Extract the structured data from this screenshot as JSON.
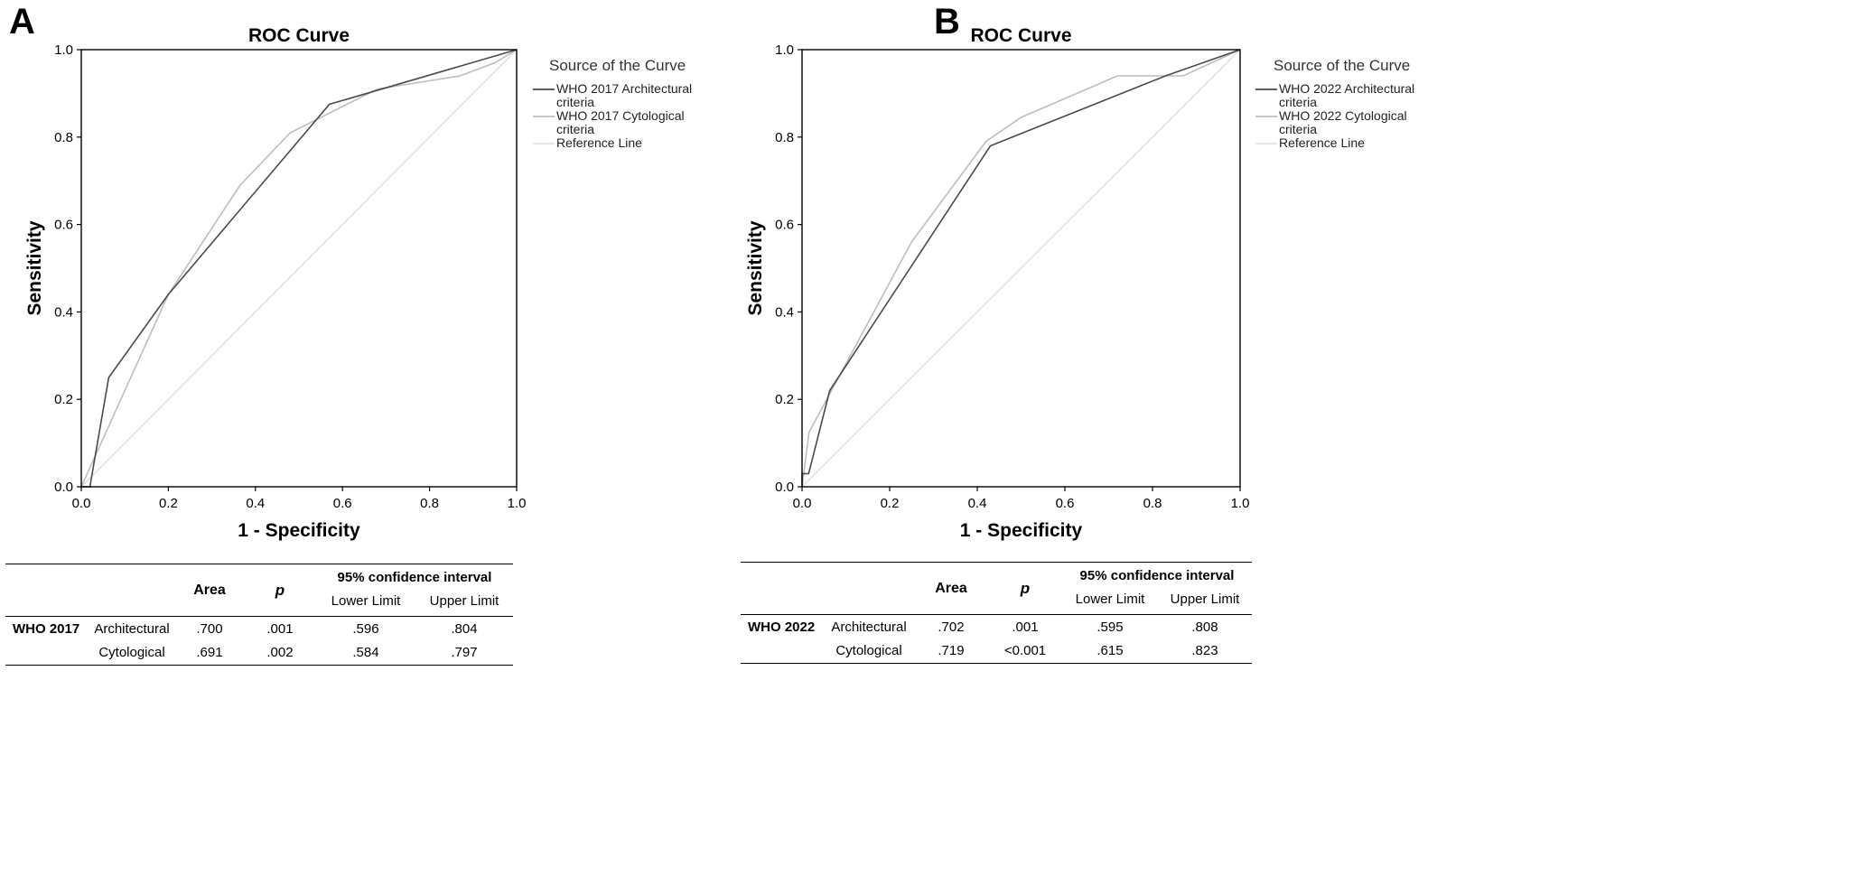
{
  "chart_data": [
    {
      "type": "line",
      "panel_label": "A",
      "title": "ROC Curve",
      "xlabel": "1 - Specificity",
      "ylabel": "Sensitivity",
      "xlim": [
        0,
        1
      ],
      "ylim": [
        0,
        1
      ],
      "xticks": [
        "0.0",
        "0.2",
        "0.4",
        "0.6",
        "0.8",
        "1.0"
      ],
      "yticks": [
        "0.0",
        "0.2",
        "0.4",
        "0.6",
        "0.8",
        "1.0"
      ],
      "legend_title": "Source of the Curve",
      "legend_position": "right",
      "series": [
        {
          "name": "WHO 2017 Architectural criteria",
          "legend_lines": [
            "WHO 2017 Architectural",
            "criteria"
          ],
          "color": "#4a4a4a",
          "x": [
            0,
            0.02,
            0.03,
            0.063,
            0.2,
            0.57,
            1.0
          ],
          "y": [
            0,
            0,
            0.06,
            0.25,
            0.44,
            0.875,
            1.0
          ]
        },
        {
          "name": "WHO 2017 Cytological criteria",
          "legend_lines": [
            "WHO 2017 Cytological",
            "criteria"
          ],
          "color": "#bdbdbd",
          "x": [
            0,
            0.2,
            0.365,
            0.48,
            0.68,
            0.87,
            0.95,
            1.0
          ],
          "y": [
            0,
            0.44,
            0.69,
            0.81,
            0.91,
            0.94,
            0.97,
            1.0
          ]
        },
        {
          "name": "Reference Line",
          "legend_lines": [
            "Reference Line"
          ],
          "color": "#e2e2e2",
          "x": [
            0,
            1
          ],
          "y": [
            0,
            1
          ]
        }
      ],
      "table": {
        "group": "WHO 2017",
        "headers": {
          "area": "Area",
          "p": "p",
          "ci": "95% confidence interval",
          "lower": "Lower Limit",
          "upper": "Upper Limit"
        },
        "rows": [
          {
            "label": "Architectural",
            "area": ".700",
            "p": ".001",
            "lower": ".596",
            "upper": ".804"
          },
          {
            "label": "Cytological",
            "area": ".691",
            "p": ".002",
            "lower": ".584",
            "upper": ".797"
          }
        ]
      }
    },
    {
      "type": "line",
      "panel_label": "B",
      "title": "ROC Curve",
      "xlabel": "1 - Specificity",
      "ylabel": "Sensitivity",
      "xlim": [
        0,
        1
      ],
      "ylim": [
        0,
        1
      ],
      "xticks": [
        "0.0",
        "0.2",
        "0.4",
        "0.6",
        "0.8",
        "1.0"
      ],
      "yticks": [
        "0.0",
        "0.2",
        "0.4",
        "0.6",
        "0.8",
        "1.0"
      ],
      "legend_title": "Source of the Curve",
      "legend_position": "right",
      "series": [
        {
          "name": "WHO 2022 Architectural criteria",
          "legend_lines": [
            "WHO 2022 Architectural",
            "criteria"
          ],
          "color": "#4a4a4a",
          "x": [
            0,
            0,
            0.015,
            0.063,
            0.43,
            0.83,
            1.0
          ],
          "y": [
            0,
            0.03,
            0.03,
            0.22,
            0.78,
            0.94,
            1.0
          ]
        },
        {
          "name": "WHO 2022 Cytological criteria",
          "legend_lines": [
            "WHO 2022 Cytological",
            "criteria"
          ],
          "color": "#bdbdbd",
          "x": [
            0,
            0.016,
            0.25,
            0.42,
            0.5,
            0.72,
            0.87,
            1.0
          ],
          "y": [
            0,
            0.125,
            0.56,
            0.79,
            0.845,
            0.94,
            0.94,
            1.0
          ]
        },
        {
          "name": "Reference Line",
          "legend_lines": [
            "Reference Line"
          ],
          "color": "#e2e2e2",
          "x": [
            0,
            1
          ],
          "y": [
            0,
            1
          ]
        }
      ],
      "table": {
        "group": "WHO 2022",
        "headers": {
          "area": "Area",
          "p": "p",
          "ci": "95% confidence interval",
          "lower": "Lower Limit",
          "upper": "Upper Limit"
        },
        "rows": [
          {
            "label": "Architectural",
            "area": ".702",
            "p": ".001",
            "lower": ".595",
            "upper": ".808"
          },
          {
            "label": "Cytological",
            "area": ".719",
            "p": "<0.001",
            "lower": ".615",
            "upper": ".823"
          }
        ]
      }
    }
  ]
}
